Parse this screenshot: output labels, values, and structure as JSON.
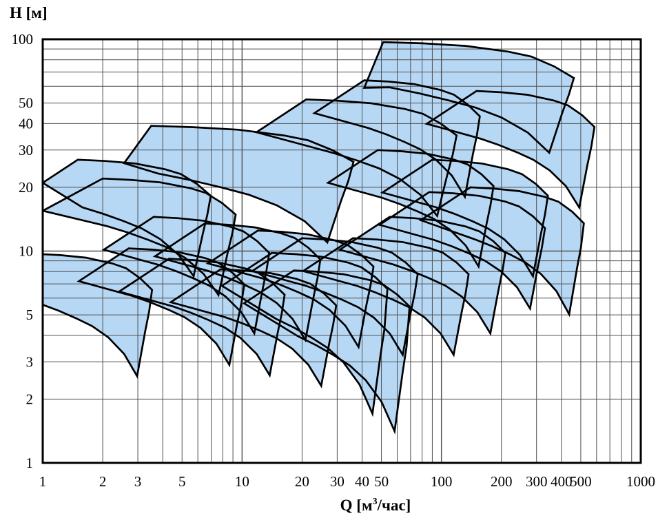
{
  "chart_data": {
    "type": "area",
    "title": "",
    "xlabel": "Q [м³/час]",
    "xlabel_parts": [
      "Q [м",
      "3",
      "/час]"
    ],
    "ylabel": "H [м]",
    "x_scale": "log",
    "y_scale": "log",
    "xlim": [
      1,
      1000
    ],
    "ylim": [
      1,
      100
    ],
    "x_ticks": [
      1,
      2,
      3,
      5,
      10,
      20,
      30,
      40,
      50,
      100,
      200,
      300,
      400,
      500,
      1000
    ],
    "y_ticks": [
      1,
      2,
      3,
      5,
      10,
      20,
      30,
      40,
      50,
      100
    ],
    "grid": "log-minor",
    "grid_mantissas": [
      2,
      3,
      4,
      5,
      6,
      7,
      8,
      9
    ],
    "colors": {
      "field_fill": "#b7d8f5",
      "field_outline": "#000000",
      "grid_line": "#4f4f4f",
      "axis_border": "#000000",
      "label_text": "#000000",
      "background": "#ffffff"
    },
    "field_template": {
      "top": [
        [
          0.0,
          0.0
        ],
        [
          0.12,
          -0.006
        ],
        [
          0.25,
          -0.018
        ],
        [
          0.38,
          -0.045
        ],
        [
          0.45,
          -0.068
        ],
        [
          0.52,
          -0.115
        ],
        [
          0.58,
          -0.17
        ]
      ],
      "right": [
        [
          0.565,
          -0.26
        ],
        [
          0.545,
          -0.35
        ],
        [
          0.525,
          -0.45
        ],
        [
          0.505,
          -0.55
        ]
      ],
      "bottom": [
        [
          0.44,
          -0.45
        ],
        [
          0.36,
          -0.375
        ],
        [
          0.28,
          -0.325
        ],
        [
          0.2,
          -0.29
        ],
        [
          0.11,
          -0.255
        ],
        [
          0.02,
          -0.225
        ]
      ],
      "default_bl": [
        -0.25,
        -0.155
      ]
    },
    "pump_fields": [
      {
        "tl": [
          51,
          97
        ],
        "w": 1.65,
        "d": 0.95,
        "bl": [
          41,
          59
        ]
      },
      {
        "tl": [
          150,
          57
        ],
        "w": 1.02,
        "d": 1
      },
      {
        "tl": [
          41,
          64
        ],
        "w": 1,
        "d": 1
      },
      {
        "tl": [
          21,
          52
        ],
        "w": 1.3,
        "d": 1
      },
      {
        "tl": [
          3.5,
          39
        ],
        "w": 1.75,
        "d": 1,
        "bl": [
          2.56,
          26
        ]
      },
      {
        "tl": [
          1.5,
          27
        ],
        "w": 1.15,
        "d": 1,
        "bl": [
          1.0,
          21
        ]
      },
      {
        "tl": [
          48,
          30
        ],
        "w": 1,
        "d": 1
      },
      {
        "tl": [
          90,
          27
        ],
        "w": 1,
        "d": 1
      },
      {
        "tl": [
          2.0,
          22
        ],
        "w": 1.15,
        "d": 1,
        "bl": [
          1.0,
          15.5
        ]
      },
      {
        "tl": [
          3.6,
          14.5
        ],
        "w": 1,
        "d": 1
      },
      {
        "tl": [
          6.5,
          13.5
        ],
        "w": 1,
        "d": 1
      },
      {
        "tl": [
          12,
          12.5
        ],
        "w": 1,
        "d": 1
      },
      {
        "tl": [
          20,
          11.5
        ],
        "w": 1,
        "d": 1
      },
      {
        "tl": [
          36,
          11.5
        ],
        "w": 1,
        "d": 1
      },
      {
        "tl": [
          55,
          14.5
        ],
        "w": 1,
        "d": 1
      },
      {
        "tl": [
          87,
          19
        ],
        "w": 1,
        "d": 1
      },
      {
        "tl": [
          140,
          20
        ],
        "w": 0.98,
        "d": 1.09
      },
      {
        "tl": [
          0.93,
          9.7
        ],
        "w": 1,
        "d": 1.05
      },
      {
        "tl": [
          2.7,
          10.3
        ],
        "w": 1,
        "d": 1
      },
      {
        "tl": [
          4.3,
          9.2
        ],
        "w": 1,
        "d": 1
      },
      {
        "tl": [
          7.8,
          8.2
        ],
        "w": 1,
        "d": 1
      },
      {
        "tl": [
          14.1,
          9.8
        ],
        "w": 1,
        "d": 1.38
      },
      {
        "tl": [
          18.2,
          8.1
        ],
        "w": 1,
        "d": 1.38
      }
    ]
  }
}
